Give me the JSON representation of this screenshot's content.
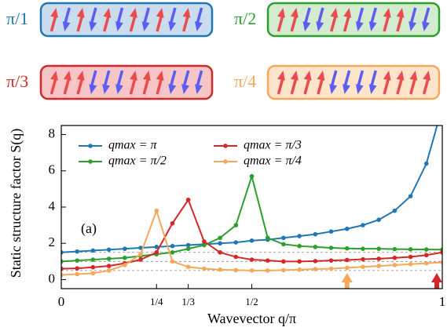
{
  "panels": [
    {
      "label": "π/1",
      "color": "#1f77b4",
      "fill": "#cadcee"
    },
    {
      "label": "π/2",
      "color": "#2ca02c",
      "fill": "#d3ebcf"
    },
    {
      "label": "π/3",
      "color": "#d62728",
      "fill": "#f6c6c6"
    },
    {
      "label": "π/4",
      "color": "#f5a85a",
      "fill": "#fde4ca"
    }
  ],
  "chart_data": {
    "type": "line",
    "xlabel": "Wavevector q/π",
    "ylabel": "Static structure factor S(q)",
    "annotation": "(a)",
    "x": [
      0,
      0.0417,
      0.0833,
      0.125,
      0.1667,
      0.2083,
      0.25,
      0.2917,
      0.3333,
      0.375,
      0.4167,
      0.4583,
      0.5,
      0.5417,
      0.5833,
      0.625,
      0.6667,
      0.7083,
      0.75,
      0.7917,
      0.8333,
      0.875,
      0.9167,
      0.9583,
      1
    ],
    "series": [
      {
        "name": "qmax = π",
        "color": "#1f77b4",
        "values": [
          1.5,
          1.55,
          1.6,
          1.65,
          1.7,
          1.75,
          1.8,
          1.85,
          1.9,
          1.95,
          2.0,
          2.05,
          2.15,
          2.2,
          2.3,
          2.4,
          2.5,
          2.65,
          2.8,
          3.0,
          3.3,
          3.8,
          4.6,
          6.4,
          9.5
        ]
      },
      {
        "name": "qmax = π/2",
        "color": "#2ca02c",
        "values": [
          1.0,
          1.05,
          1.1,
          1.15,
          1.2,
          1.3,
          1.4,
          1.5,
          1.7,
          1.9,
          2.3,
          3.0,
          5.7,
          2.3,
          1.95,
          1.85,
          1.8,
          1.75,
          1.72,
          1.7,
          1.7,
          1.68,
          1.67,
          1.66,
          1.65
        ]
      },
      {
        "name": "qmax = π/3",
        "color": "#d62728",
        "values": [
          0.6,
          0.62,
          0.68,
          0.75,
          0.9,
          1.1,
          1.5,
          3.1,
          4.4,
          2.1,
          1.5,
          1.25,
          1.1,
          1.05,
          1.0,
          1.0,
          1.02,
          1.05,
          1.08,
          1.12,
          1.15,
          1.2,
          1.25,
          1.35,
          1.5
        ]
      },
      {
        "name": "qmax = π/4",
        "color": "#f5a85a",
        "values": [
          0.25,
          0.3,
          0.35,
          0.5,
          0.8,
          1.4,
          3.8,
          1.0,
          0.7,
          0.6,
          0.55,
          0.52,
          0.5,
          0.5,
          0.52,
          0.55,
          0.58,
          0.6,
          0.65,
          0.7,
          0.75,
          0.8,
          0.85,
          0.9,
          0.95
        ]
      }
    ],
    "xlim": [
      0,
      1
    ],
    "ylim": [
      -0.5,
      8.5
    ],
    "xticks": [
      0,
      {
        "value": 0.25,
        "label": "1/4"
      },
      {
        "value": 0.3333,
        "label": "1/3"
      },
      {
        "value": 0.5,
        "label": "1/2"
      },
      1
    ],
    "yticks": [
      0,
      2,
      4,
      6,
      8
    ],
    "hlines": [
      0.5,
      1,
      1.5
    ],
    "arrows": [
      {
        "x": 0.75,
        "color": "#f5a85a"
      },
      {
        "x": 1,
        "color": "#d62728"
      }
    ]
  }
}
